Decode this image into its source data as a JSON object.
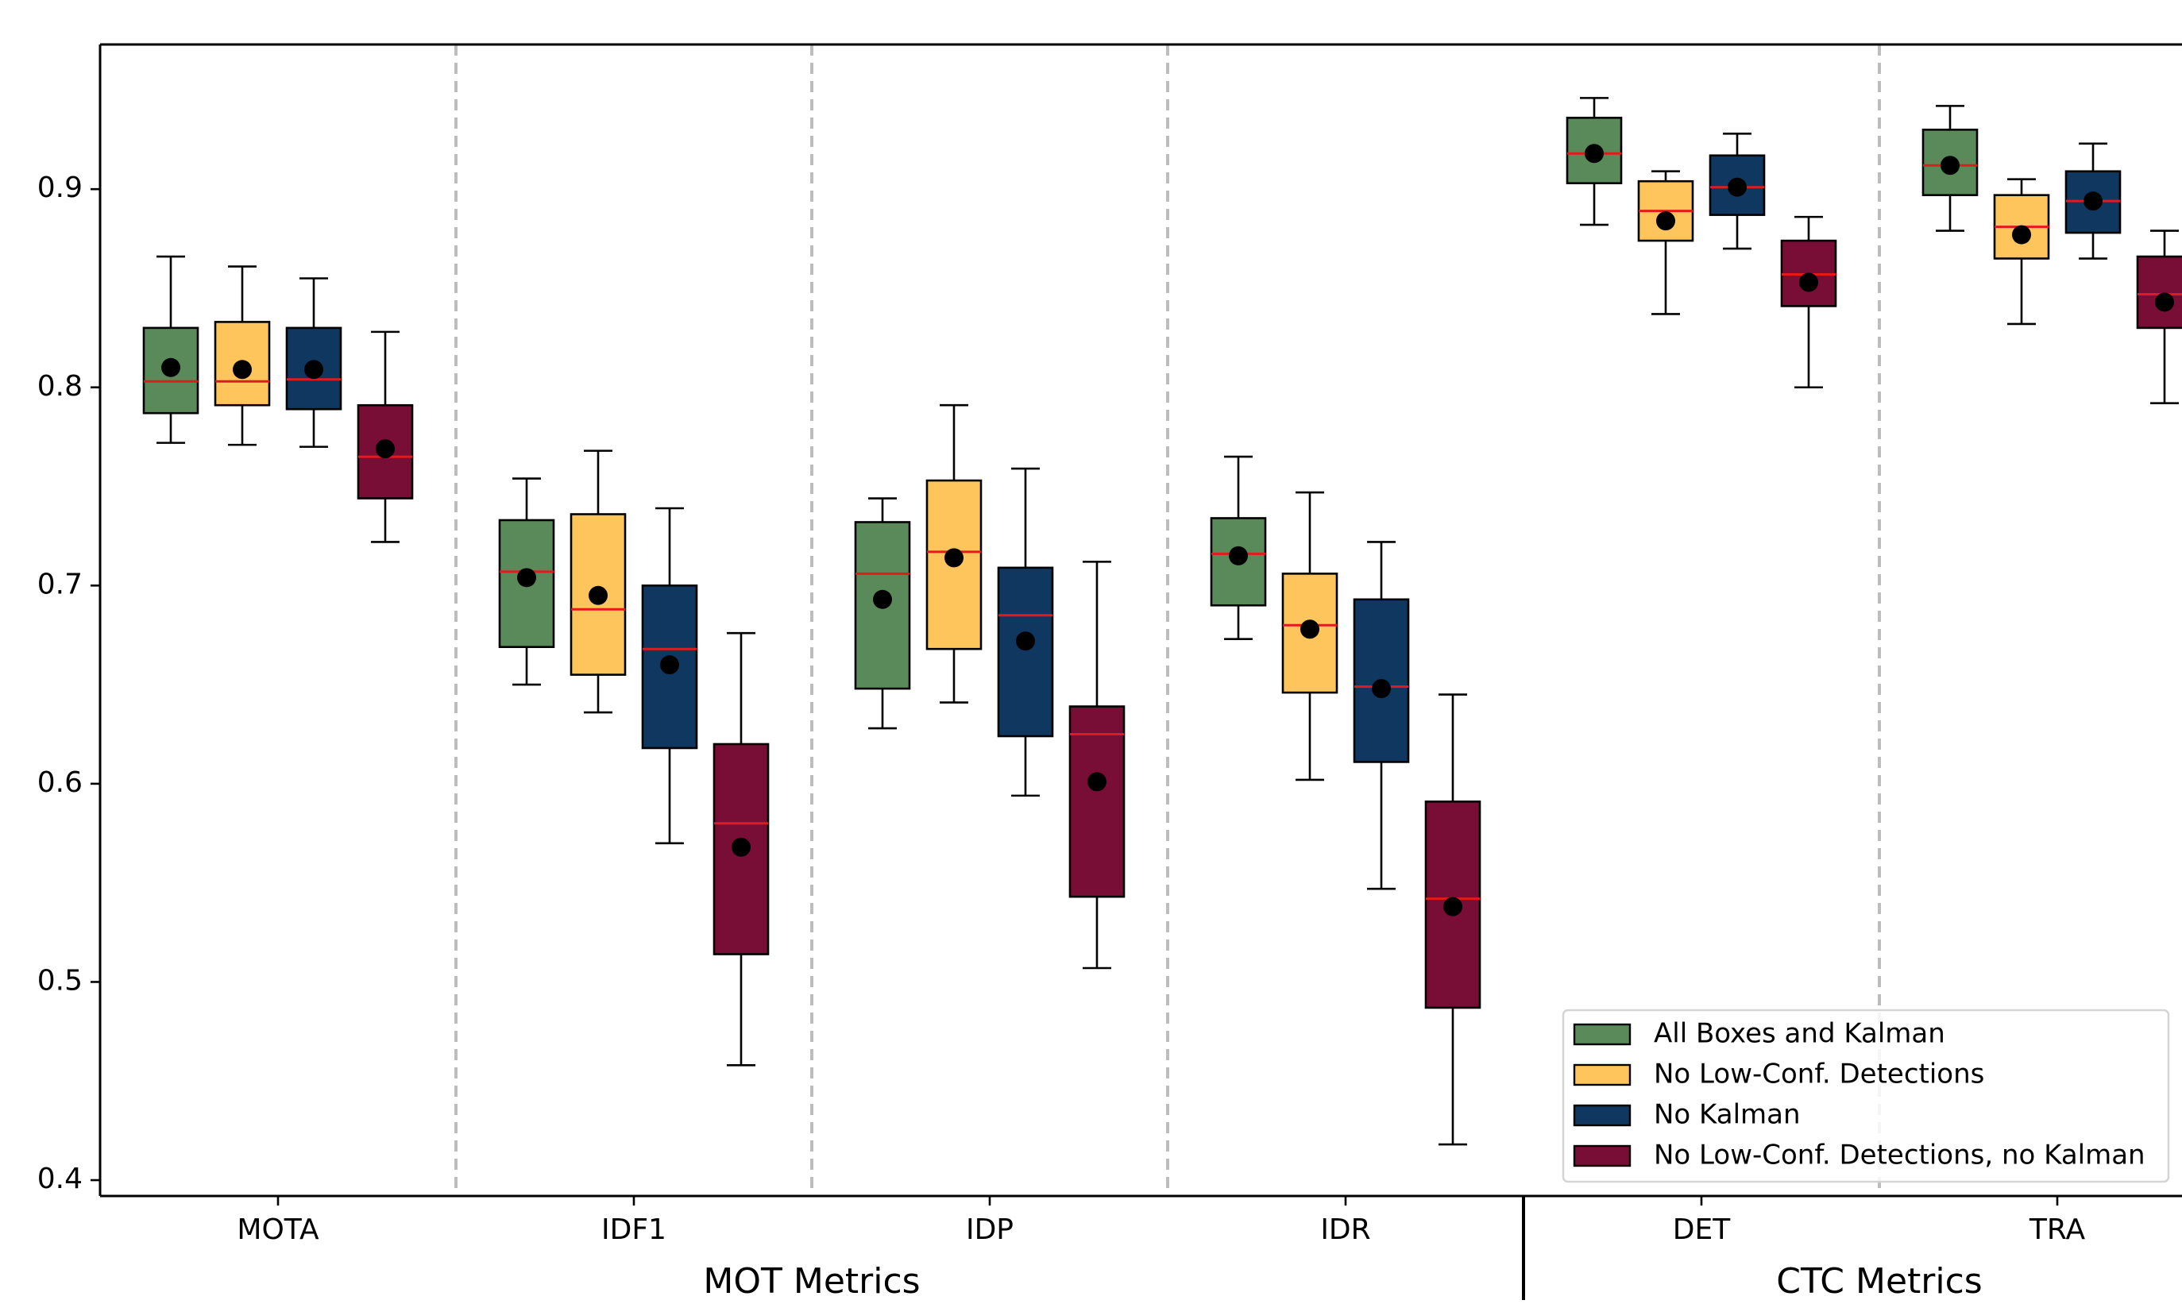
{
  "chart_data": {
    "type": "box",
    "title": "",
    "xlabel": "",
    "ylabel": "",
    "ylim": [
      0.392,
      0.973
    ],
    "yticks": [
      0.4,
      0.5,
      0.6,
      0.7,
      0.8,
      0.9
    ],
    "ytick_labels": [
      "0.4",
      "0.5",
      "0.6",
      "0.7",
      "0.8",
      "0.9"
    ],
    "grid": false,
    "legend_position": "lower-right",
    "categories": [
      "MOTA",
      "IDF1",
      "IDP",
      "IDR",
      "DET",
      "TRA"
    ],
    "groups": [
      {
        "label": "MOT Metrics",
        "categories": [
          "MOTA",
          "IDF1",
          "IDP",
          "IDR"
        ]
      },
      {
        "label": "CTC Metrics",
        "categories": [
          "DET",
          "TRA"
        ]
      }
    ],
    "median_color": "#e31a1c",
    "mean_marker_color": "#000000",
    "series": [
      {
        "name": "All Boxes and Kalman",
        "color": "#5b8a5a",
        "boxes": [
          {
            "whislo": 0.772,
            "q1": 0.787,
            "med": 0.803,
            "q3": 0.83,
            "whishi": 0.866,
            "mean": 0.81
          },
          {
            "whislo": 0.65,
            "q1": 0.669,
            "med": 0.707,
            "q3": 0.733,
            "whishi": 0.754,
            "mean": 0.704
          },
          {
            "whislo": 0.628,
            "q1": 0.648,
            "med": 0.706,
            "q3": 0.732,
            "whishi": 0.744,
            "mean": 0.693
          },
          {
            "whislo": 0.673,
            "q1": 0.69,
            "med": 0.716,
            "q3": 0.734,
            "whishi": 0.765,
            "mean": 0.715
          },
          {
            "whislo": 0.882,
            "q1": 0.903,
            "med": 0.918,
            "q3": 0.936,
            "whishi": 0.946,
            "mean": 0.918
          },
          {
            "whislo": 0.879,
            "q1": 0.897,
            "med": 0.912,
            "q3": 0.93,
            "whishi": 0.942,
            "mean": 0.912
          }
        ]
      },
      {
        "name": "No Low-Conf. Detections",
        "color": "#fec55c",
        "boxes": [
          {
            "whislo": 0.771,
            "q1": 0.791,
            "med": 0.803,
            "q3": 0.833,
            "whishi": 0.861,
            "mean": 0.809
          },
          {
            "whislo": 0.636,
            "q1": 0.655,
            "med": 0.688,
            "q3": 0.736,
            "whishi": 0.768,
            "mean": 0.695
          },
          {
            "whislo": 0.641,
            "q1": 0.668,
            "med": 0.717,
            "q3": 0.753,
            "whishi": 0.791,
            "mean": 0.714
          },
          {
            "whislo": 0.602,
            "q1": 0.646,
            "med": 0.68,
            "q3": 0.706,
            "whishi": 0.747,
            "mean": 0.678
          },
          {
            "whislo": 0.837,
            "q1": 0.874,
            "med": 0.889,
            "q3": 0.904,
            "whishi": 0.909,
            "mean": 0.884
          },
          {
            "whislo": 0.832,
            "q1": 0.865,
            "med": 0.881,
            "q3": 0.897,
            "whishi": 0.905,
            "mean": 0.877
          }
        ]
      },
      {
        "name": "No Kalman",
        "color": "#0f3760",
        "boxes": [
          {
            "whislo": 0.77,
            "q1": 0.789,
            "med": 0.804,
            "q3": 0.83,
            "whishi": 0.855,
            "mean": 0.809
          },
          {
            "whislo": 0.57,
            "q1": 0.618,
            "med": 0.668,
            "q3": 0.7,
            "whishi": 0.739,
            "mean": 0.66
          },
          {
            "whislo": 0.594,
            "q1": 0.624,
            "med": 0.685,
            "q3": 0.709,
            "whishi": 0.759,
            "mean": 0.672
          },
          {
            "whislo": 0.547,
            "q1": 0.611,
            "med": 0.649,
            "q3": 0.693,
            "whishi": 0.722,
            "mean": 0.648
          },
          {
            "whislo": 0.87,
            "q1": 0.887,
            "med": 0.901,
            "q3": 0.917,
            "whishi": 0.928,
            "mean": 0.901
          },
          {
            "whislo": 0.865,
            "q1": 0.878,
            "med": 0.894,
            "q3": 0.909,
            "whishi": 0.923,
            "mean": 0.894
          }
        ]
      },
      {
        "name": "No Low-Conf. Detections, no Kalman",
        "color": "#780e35",
        "boxes": [
          {
            "whislo": 0.722,
            "q1": 0.744,
            "med": 0.765,
            "q3": 0.791,
            "whishi": 0.828,
            "mean": 0.769
          },
          {
            "whislo": 0.458,
            "q1": 0.514,
            "med": 0.58,
            "q3": 0.62,
            "whishi": 0.676,
            "mean": 0.568
          },
          {
            "whislo": 0.507,
            "q1": 0.543,
            "med": 0.625,
            "q3": 0.639,
            "whishi": 0.712,
            "mean": 0.601
          },
          {
            "whislo": 0.418,
            "q1": 0.487,
            "med": 0.542,
            "q3": 0.591,
            "whishi": 0.645,
            "mean": 0.538
          },
          {
            "whislo": 0.8,
            "q1": 0.841,
            "med": 0.857,
            "q3": 0.874,
            "whishi": 0.886,
            "mean": 0.853
          },
          {
            "whislo": 0.792,
            "q1": 0.83,
            "med": 0.847,
            "q3": 0.866,
            "whishi": 0.879,
            "mean": 0.843
          }
        ]
      }
    ]
  }
}
